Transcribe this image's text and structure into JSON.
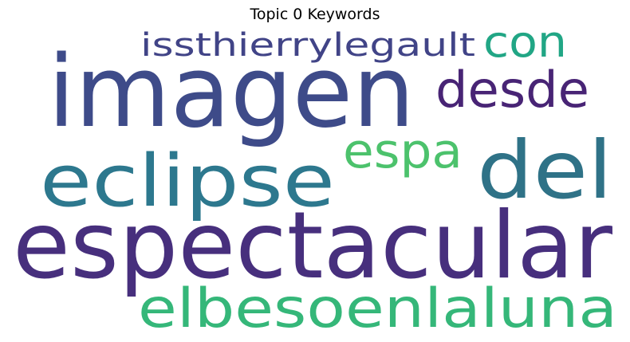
{
  "title": "Topic 0 Keywords",
  "words": [
    {
      "text": "imagen",
      "color": "#3e4b89"
    },
    {
      "text": "espectacular",
      "color": "#472f7d"
    },
    {
      "text": "del",
      "color": "#2f7287"
    },
    {
      "text": "eclipse",
      "color": "#2d788e"
    },
    {
      "text": "elbesoenlaluna",
      "color": "#35b779"
    },
    {
      "text": "desde",
      "color": "#482475"
    },
    {
      "text": "espa",
      "color": "#4cc26c"
    },
    {
      "text": "con",
      "color": "#21a685"
    },
    {
      "text": "issthierrylegault",
      "color": "#414487"
    }
  ]
}
